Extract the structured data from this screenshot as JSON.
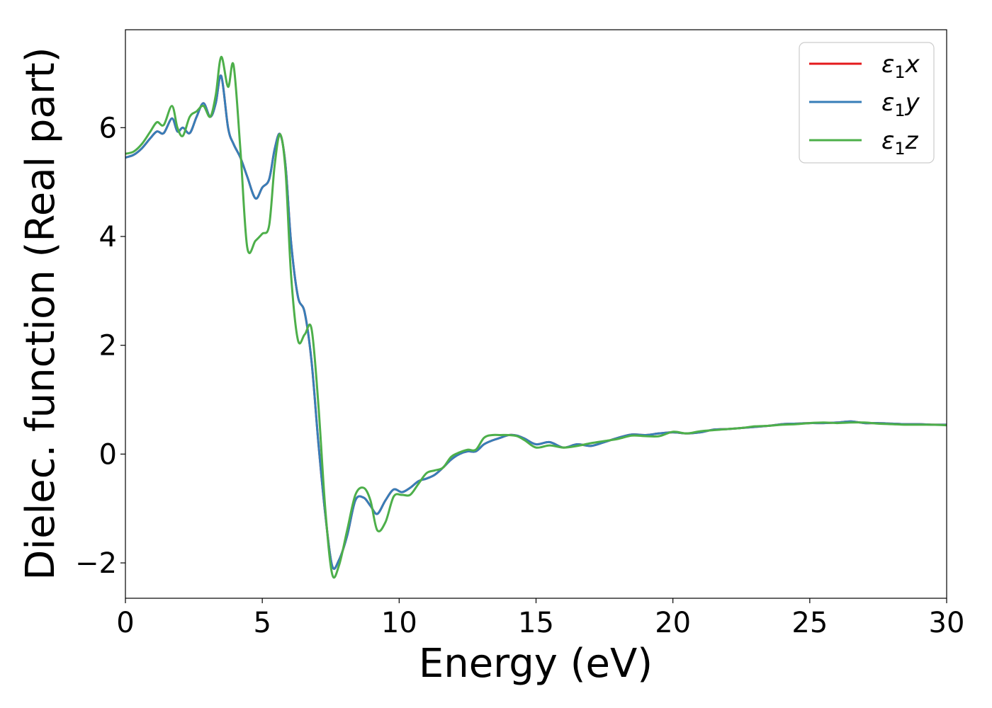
{
  "chart_data": {
    "type": "line",
    "title": "",
    "xlabel": "Energy (eV)",
    "ylabel": "Dielec. function (Real part)",
    "xlim": [
      0,
      30
    ],
    "ylim": [
      -2.65,
      7.8
    ],
    "grid": false,
    "legend_position": "top-right",
    "x_ticks": [
      0,
      5,
      10,
      15,
      20,
      25,
      30
    ],
    "y_ticks": [
      -2,
      0,
      2,
      4,
      6
    ],
    "x_tick_labels": [
      "0",
      "5",
      "10",
      "15",
      "20",
      "25",
      "30"
    ],
    "y_tick_labels": [
      "−2",
      "0",
      "2",
      "4",
      "6"
    ],
    "series": [
      {
        "name": "ε1x",
        "legend_main": "ε",
        "legend_sub": "1",
        "legend_var": "x",
        "color": "#e41a1c",
        "x": [
          0,
          0.3,
          0.6,
          0.9,
          1.15,
          1.4,
          1.7,
          1.9,
          2.1,
          2.35,
          2.6,
          2.85,
          3.1,
          3.3,
          3.5,
          3.75,
          3.95,
          4.2,
          4.45,
          4.75,
          5.0,
          5.25,
          5.45,
          5.65,
          5.85,
          6.05,
          6.3,
          6.55,
          6.8,
          7.05,
          7.3,
          7.55,
          7.8,
          8.1,
          8.4,
          8.7,
          8.95,
          9.2,
          9.5,
          9.8,
          10.1,
          10.4,
          10.7,
          11.0,
          11.3,
          11.6,
          11.9,
          12.2,
          12.5,
          12.8,
          13.1,
          13.4,
          13.7,
          14.0,
          14.3,
          14.6,
          15.0,
          15.5,
          16.0,
          16.5,
          17.0,
          17.5,
          18.0,
          18.5,
          19.0,
          19.5,
          20.0,
          20.5,
          21.0,
          21.5,
          22.0,
          22.5,
          23.0,
          23.5,
          24.0,
          24.5,
          25.0,
          25.5,
          26.0,
          26.5,
          27.0,
          27.5,
          28.0,
          28.5,
          29.0,
          29.5,
          30.0
        ],
        "y": [
          5.45,
          5.5,
          5.62,
          5.8,
          5.93,
          5.9,
          6.17,
          5.93,
          6.0,
          5.9,
          6.2,
          6.45,
          6.2,
          6.45,
          6.95,
          6.0,
          5.7,
          5.45,
          5.1,
          4.7,
          4.9,
          5.05,
          5.6,
          5.88,
          5.3,
          3.9,
          2.9,
          2.6,
          1.7,
          0.2,
          -1.1,
          -2.05,
          -1.95,
          -1.5,
          -0.85,
          -0.8,
          -0.95,
          -1.1,
          -0.85,
          -0.65,
          -0.7,
          -0.62,
          -0.5,
          -0.45,
          -0.38,
          -0.25,
          -0.1,
          0.0,
          0.05,
          0.05,
          0.18,
          0.25,
          0.3,
          0.35,
          0.34,
          0.28,
          0.18,
          0.22,
          0.12,
          0.18,
          0.15,
          0.22,
          0.3,
          0.36,
          0.35,
          0.38,
          0.4,
          0.38,
          0.4,
          0.45,
          0.46,
          0.48,
          0.5,
          0.52,
          0.55,
          0.56,
          0.57,
          0.57,
          0.58,
          0.6,
          0.57,
          0.57,
          0.56,
          0.55,
          0.55,
          0.54,
          0.54
        ]
      },
      {
        "name": "ε1y",
        "legend_main": "ε",
        "legend_sub": "1",
        "legend_var": "y",
        "color": "#377eb8",
        "x": [
          0,
          0.3,
          0.6,
          0.9,
          1.15,
          1.4,
          1.7,
          1.9,
          2.1,
          2.35,
          2.6,
          2.85,
          3.1,
          3.3,
          3.5,
          3.75,
          3.95,
          4.2,
          4.45,
          4.75,
          5.0,
          5.25,
          5.45,
          5.65,
          5.85,
          6.05,
          6.3,
          6.55,
          6.8,
          7.05,
          7.3,
          7.55,
          7.8,
          8.1,
          8.4,
          8.7,
          8.95,
          9.2,
          9.5,
          9.8,
          10.1,
          10.4,
          10.7,
          11.0,
          11.3,
          11.6,
          11.9,
          12.2,
          12.5,
          12.8,
          13.1,
          13.4,
          13.7,
          14.0,
          14.3,
          14.6,
          15.0,
          15.5,
          16.0,
          16.5,
          17.0,
          17.5,
          18.0,
          18.5,
          19.0,
          19.5,
          20.0,
          20.5,
          21.0,
          21.5,
          22.0,
          22.5,
          23.0,
          23.5,
          24.0,
          24.5,
          25.0,
          25.5,
          26.0,
          26.5,
          27.0,
          27.5,
          28.0,
          28.5,
          29.0,
          29.5,
          30.0
        ],
        "y": [
          5.45,
          5.5,
          5.62,
          5.8,
          5.93,
          5.9,
          6.17,
          5.93,
          6.0,
          5.9,
          6.2,
          6.45,
          6.2,
          6.45,
          6.95,
          6.0,
          5.7,
          5.45,
          5.1,
          4.7,
          4.9,
          5.05,
          5.6,
          5.88,
          5.3,
          3.9,
          2.9,
          2.6,
          1.7,
          0.2,
          -1.1,
          -2.05,
          -1.95,
          -1.5,
          -0.85,
          -0.8,
          -0.95,
          -1.1,
          -0.85,
          -0.65,
          -0.7,
          -0.62,
          -0.5,
          -0.45,
          -0.38,
          -0.25,
          -0.1,
          0.0,
          0.05,
          0.05,
          0.18,
          0.25,
          0.3,
          0.35,
          0.34,
          0.28,
          0.18,
          0.22,
          0.12,
          0.18,
          0.15,
          0.22,
          0.3,
          0.36,
          0.35,
          0.38,
          0.4,
          0.38,
          0.4,
          0.45,
          0.46,
          0.48,
          0.5,
          0.52,
          0.55,
          0.56,
          0.57,
          0.57,
          0.58,
          0.6,
          0.57,
          0.57,
          0.56,
          0.55,
          0.55,
          0.54,
          0.54
        ]
      },
      {
        "name": "ε1z",
        "legend_main": "ε",
        "legend_sub": "1",
        "legend_var": "z",
        "color": "#4daf4a",
        "x": [
          0,
          0.3,
          0.6,
          0.9,
          1.15,
          1.4,
          1.7,
          1.9,
          2.1,
          2.35,
          2.6,
          2.85,
          3.1,
          3.3,
          3.5,
          3.75,
          3.95,
          4.2,
          4.45,
          4.75,
          5.0,
          5.25,
          5.45,
          5.65,
          5.85,
          6.05,
          6.3,
          6.55,
          6.8,
          7.05,
          7.3,
          7.55,
          7.8,
          8.1,
          8.4,
          8.7,
          8.95,
          9.2,
          9.5,
          9.8,
          10.1,
          10.4,
          10.7,
          11.0,
          11.3,
          11.6,
          11.9,
          12.2,
          12.5,
          12.8,
          13.1,
          13.4,
          13.7,
          14.0,
          14.3,
          14.6,
          15.0,
          15.5,
          16.0,
          16.5,
          17.0,
          17.5,
          18.0,
          18.5,
          19.0,
          19.5,
          20.0,
          20.5,
          21.0,
          21.5,
          22.0,
          22.5,
          23.0,
          23.5,
          24.0,
          24.5,
          25.0,
          25.5,
          26.0,
          26.5,
          27.0,
          27.5,
          28.0,
          28.5,
          29.0,
          29.5,
          30.0
        ],
        "y": [
          5.52,
          5.56,
          5.7,
          5.92,
          6.1,
          6.05,
          6.4,
          6.0,
          5.85,
          6.2,
          6.3,
          6.4,
          6.2,
          6.6,
          7.3,
          6.75,
          7.15,
          5.6,
          3.8,
          3.92,
          4.05,
          4.2,
          5.3,
          5.88,
          5.2,
          3.3,
          2.1,
          2.2,
          2.3,
          0.9,
          -1.0,
          -2.2,
          -2.05,
          -1.4,
          -0.75,
          -0.62,
          -0.85,
          -1.4,
          -1.25,
          -0.78,
          -0.75,
          -0.75,
          -0.55,
          -0.35,
          -0.3,
          -0.25,
          -0.05,
          0.03,
          0.08,
          0.08,
          0.3,
          0.35,
          0.35,
          0.35,
          0.33,
          0.25,
          0.12,
          0.16,
          0.12,
          0.15,
          0.2,
          0.24,
          0.28,
          0.34,
          0.33,
          0.33,
          0.41,
          0.38,
          0.42,
          0.44,
          0.46,
          0.48,
          0.51,
          0.52,
          0.54,
          0.55,
          0.57,
          0.58,
          0.57,
          0.58,
          0.58,
          0.56,
          0.55,
          0.54,
          0.54,
          0.54,
          0.53
        ]
      }
    ]
  }
}
